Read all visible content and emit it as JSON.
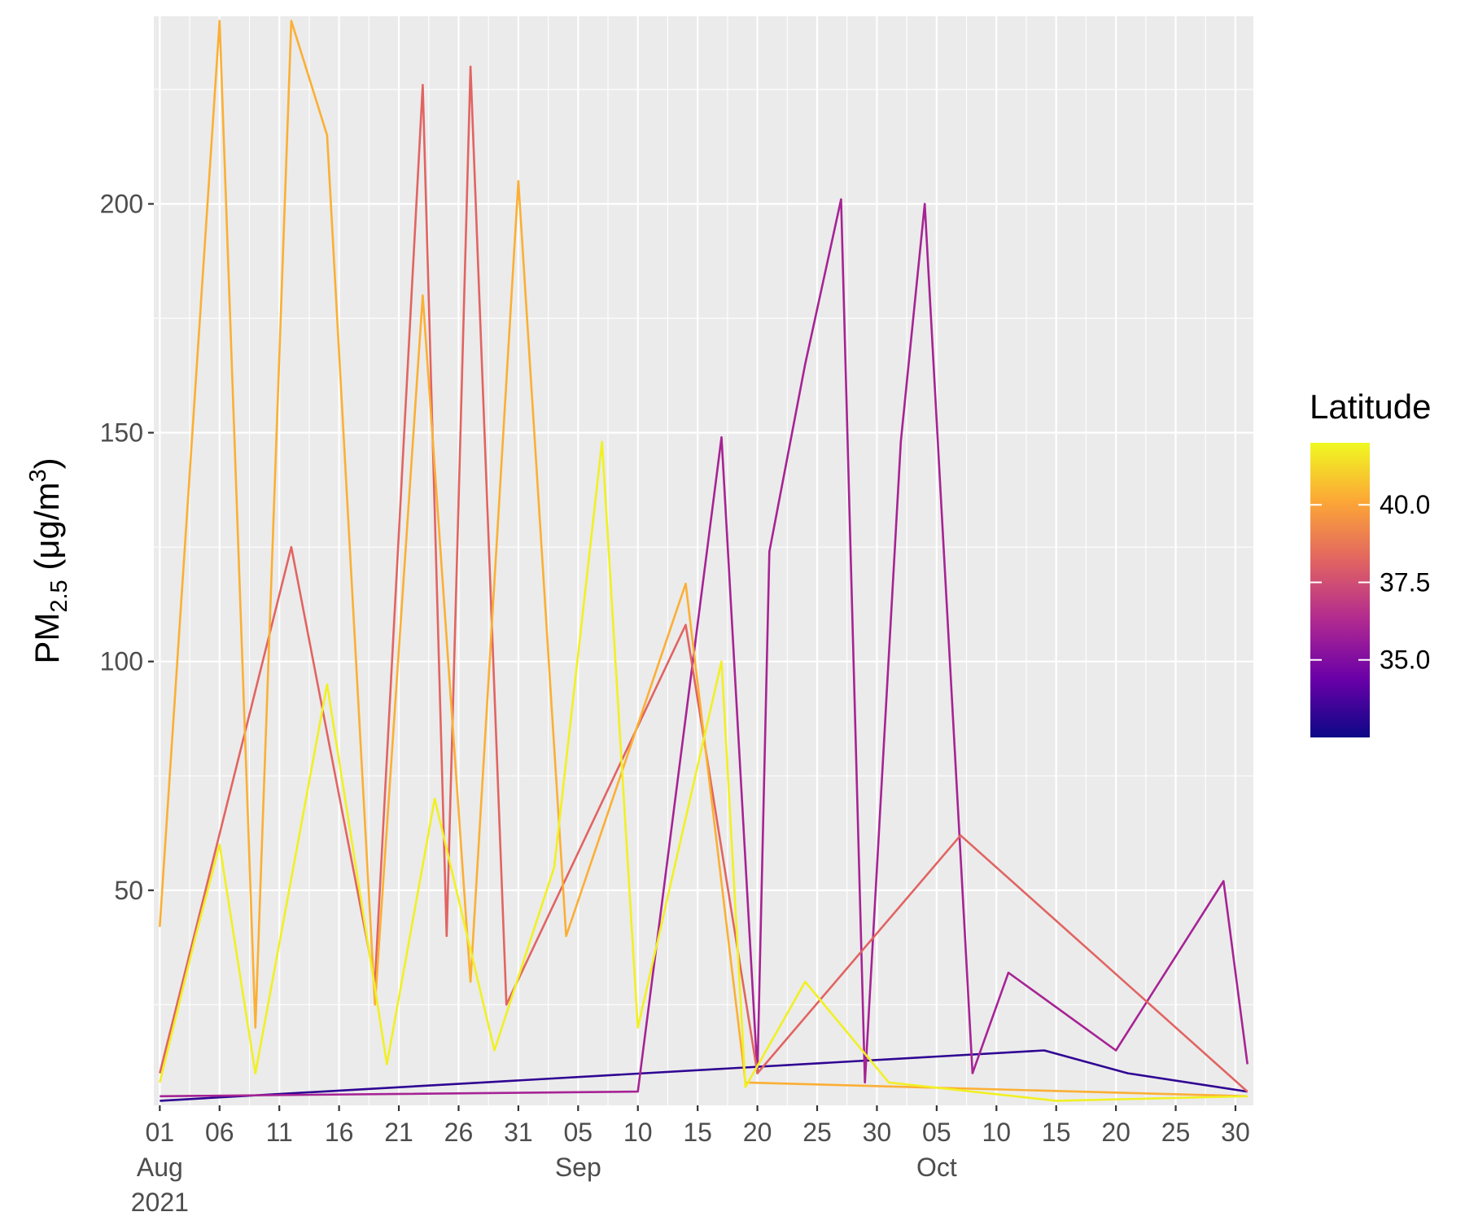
{
  "chart_data": {
    "type": "line",
    "ylabel": {
      "main": "PM",
      "subscript": "2.5",
      "units_open": " (μg/m",
      "units_sup": "3",
      "units_close": ")"
    },
    "xlabel": "",
    "x_range": [
      "2021-08-01",
      "2021-10-31"
    ],
    "ylim": [
      3,
      241
    ],
    "y_ticks": [
      50,
      100,
      150,
      200
    ],
    "x_ticks": [
      {
        "date": "2021-08-01",
        "label": "01",
        "sub": [
          "Aug",
          "2021"
        ]
      },
      {
        "date": "2021-08-06",
        "label": "06"
      },
      {
        "date": "2021-08-11",
        "label": "11"
      },
      {
        "date": "2021-08-16",
        "label": "16"
      },
      {
        "date": "2021-08-21",
        "label": "21"
      },
      {
        "date": "2021-08-26",
        "label": "26"
      },
      {
        "date": "2021-08-31",
        "label": "31"
      },
      {
        "date": "2021-09-05",
        "label": "05",
        "sub": [
          "Sep"
        ]
      },
      {
        "date": "2021-09-10",
        "label": "10"
      },
      {
        "date": "2021-09-15",
        "label": "15"
      },
      {
        "date": "2021-09-20",
        "label": "20"
      },
      {
        "date": "2021-09-25",
        "label": "25"
      },
      {
        "date": "2021-09-30",
        "label": "30"
      },
      {
        "date": "2021-10-05",
        "label": "05",
        "sub": [
          "Oct"
        ]
      },
      {
        "date": "2021-10-10",
        "label": "10"
      },
      {
        "date": "2021-10-15",
        "label": "15"
      },
      {
        "date": "2021-10-20",
        "label": "20"
      },
      {
        "date": "2021-10-25",
        "label": "25"
      },
      {
        "date": "2021-10-30",
        "label": "30"
      }
    ],
    "grid": true,
    "background": "#EBEBEB",
    "legend": {
      "title": "Latitude",
      "position": "right",
      "type": "colorbar",
      "range": [
        32.5,
        42.0
      ],
      "ticks": [
        {
          "value": 35.0,
          "label": "35.0"
        },
        {
          "value": 37.5,
          "label": "37.5"
        },
        {
          "value": 40.0,
          "label": "40.0"
        }
      ],
      "colormap": [
        "#0D0887",
        "#6A00A8",
        "#B12A90",
        "#E16462",
        "#FCA636",
        "#F0F921"
      ]
    },
    "series": [
      {
        "latitude": 41.8,
        "peak_dates": [
          "2021-09-07",
          "2021-09-17"
        ],
        "values": [
          {
            "date": "2021-08-01",
            "pm25": 8
          },
          {
            "date": "2021-08-04",
            "pm25": 40
          },
          {
            "date": "2021-08-06",
            "pm25": 60
          },
          {
            "date": "2021-08-09",
            "pm25": 10
          },
          {
            "date": "2021-08-15",
            "pm25": 95
          },
          {
            "date": "2021-08-20",
            "pm25": 12
          },
          {
            "date": "2021-08-24",
            "pm25": 70
          },
          {
            "date": "2021-08-29",
            "pm25": 15
          },
          {
            "date": "2021-09-03",
            "pm25": 55
          },
          {
            "date": "2021-09-07",
            "pm25": 148
          },
          {
            "date": "2021-09-10",
            "pm25": 20
          },
          {
            "date": "2021-09-17",
            "pm25": 100
          },
          {
            "date": "2021-09-19",
            "pm25": 7
          },
          {
            "date": "2021-09-24",
            "pm25": 30
          },
          {
            "date": "2021-10-01",
            "pm25": 8
          },
          {
            "date": "2021-10-15",
            "pm25": 4
          },
          {
            "date": "2021-10-31",
            "pm25": 5
          }
        ]
      },
      {
        "latitude": 40.3,
        "peak_dates": [
          "2021-08-06",
          "2021-08-12"
        ],
        "values": [
          {
            "date": "2021-08-01",
            "pm25": 42
          },
          {
            "date": "2021-08-06",
            "pm25": 240
          },
          {
            "date": "2021-08-09",
            "pm25": 20
          },
          {
            "date": "2021-08-12",
            "pm25": 240
          },
          {
            "date": "2021-08-15",
            "pm25": 215
          },
          {
            "date": "2021-08-19",
            "pm25": 25
          },
          {
            "date": "2021-08-23",
            "pm25": 180
          },
          {
            "date": "2021-08-27",
            "pm25": 30
          },
          {
            "date": "2021-08-31",
            "pm25": 205
          },
          {
            "date": "2021-09-04",
            "pm25": 40
          },
          {
            "date": "2021-09-14",
            "pm25": 117
          },
          {
            "date": "2021-09-19",
            "pm25": 8
          },
          {
            "date": "2021-10-31",
            "pm25": 5
          }
        ]
      },
      {
        "latitude": 38.2,
        "peak_dates": [
          "2021-08-23",
          "2021-08-27"
        ],
        "values": [
          {
            "date": "2021-08-01",
            "pm25": 10
          },
          {
            "date": "2021-08-12",
            "pm25": 125
          },
          {
            "date": "2021-08-19",
            "pm25": 30
          },
          {
            "date": "2021-08-23",
            "pm25": 226
          },
          {
            "date": "2021-08-25",
            "pm25": 40
          },
          {
            "date": "2021-08-27",
            "pm25": 230
          },
          {
            "date": "2021-08-30",
            "pm25": 25
          },
          {
            "date": "2021-09-14",
            "pm25": 108
          },
          {
            "date": "2021-09-20",
            "pm25": 10
          },
          {
            "date": "2021-10-07",
            "pm25": 62
          },
          {
            "date": "2021-10-31",
            "pm25": 6
          }
        ]
      },
      {
        "latitude": 36.0,
        "peak_dates": [
          "2021-09-27",
          "2021-10-04"
        ],
        "values": [
          {
            "date": "2021-08-01",
            "pm25": 5
          },
          {
            "date": "2021-09-10",
            "pm25": 6
          },
          {
            "date": "2021-09-17",
            "pm25": 149
          },
          {
            "date": "2021-09-20",
            "pm25": 10
          },
          {
            "date": "2021-09-21",
            "pm25": 124
          },
          {
            "date": "2021-09-24",
            "pm25": 165
          },
          {
            "date": "2021-09-27",
            "pm25": 201
          },
          {
            "date": "2021-09-29",
            "pm25": 8
          },
          {
            "date": "2021-10-02",
            "pm25": 148
          },
          {
            "date": "2021-10-04",
            "pm25": 200
          },
          {
            "date": "2021-10-08",
            "pm25": 10
          },
          {
            "date": "2021-10-11",
            "pm25": 32
          },
          {
            "date": "2021-10-20",
            "pm25": 15
          },
          {
            "date": "2021-10-29",
            "pm25": 52
          },
          {
            "date": "2021-10-31",
            "pm25": 12
          }
        ]
      },
      {
        "latitude": 33.2,
        "peak_dates": [
          "2021-10-14"
        ],
        "values": [
          {
            "date": "2021-08-01",
            "pm25": 4
          },
          {
            "date": "2021-08-28",
            "pm25": 8
          },
          {
            "date": "2021-10-14",
            "pm25": 15
          },
          {
            "date": "2021-10-21",
            "pm25": 10
          },
          {
            "date": "2021-10-31",
            "pm25": 6
          }
        ]
      }
    ]
  }
}
